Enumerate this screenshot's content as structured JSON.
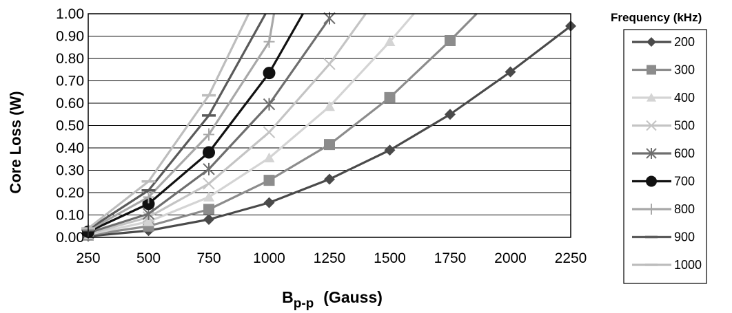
{
  "chart_data": {
    "type": "line",
    "title": "",
    "xlabel_main": "B",
    "xlabel_sub": "p-p",
    "xlabel_units": "(Gauss)",
    "ylabel": "Core Loss (W)",
    "xlim": [
      250,
      2250
    ],
    "ylim": [
      0,
      1.0
    ],
    "x_ticks": [
      "250",
      "500",
      "750",
      "1000",
      "1250",
      "1500",
      "1750",
      "2000",
      "2250"
    ],
    "y_ticks": [
      "0.00",
      "0.10",
      "0.20",
      "0.30",
      "0.40",
      "0.50",
      "0.60",
      "0.70",
      "0.80",
      "0.90",
      "1.00"
    ],
    "grid": "horizontal",
    "legend_title": "Frequency (kHz)",
    "legend_position": "right",
    "series": [
      {
        "name": "200",
        "color": "#4a4a4a",
        "marker": "diamond",
        "x": [
          250,
          500,
          750,
          1000,
          1250,
          1500,
          1750,
          2000,
          2250
        ],
        "values": [
          0.005,
          0.03,
          0.08,
          0.155,
          0.26,
          0.39,
          0.55,
          0.74,
          0.945
        ]
      },
      {
        "name": "300",
        "color": "#8c8c8c",
        "marker": "square",
        "x": [
          250,
          500,
          750,
          1000,
          1250,
          1500,
          1750,
          1860
        ],
        "values": [
          0.01,
          0.05,
          0.125,
          0.255,
          0.415,
          0.625,
          0.88,
          1.0
        ]
      },
      {
        "name": "400",
        "color": "#d4d4d4",
        "marker": "triangle",
        "x": [
          250,
          500,
          750,
          1000,
          1250,
          1500,
          1600
        ],
        "values": [
          0.012,
          0.07,
          0.18,
          0.355,
          0.585,
          0.875,
          1.0
        ]
      },
      {
        "name": "500",
        "color": "#c4c4c4",
        "marker": "x",
        "x": [
          250,
          500,
          750,
          1000,
          1250,
          1400
        ],
        "values": [
          0.015,
          0.09,
          0.24,
          0.47,
          0.775,
          1.0
        ]
      },
      {
        "name": "600",
        "color": "#6e6e6e",
        "marker": "asterisk",
        "x": [
          250,
          500,
          750,
          1000,
          1250
        ],
        "values": [
          0.02,
          0.105,
          0.305,
          0.595,
          0.98
        ]
      },
      {
        "name": "700",
        "color": "#111111",
        "marker": "circle",
        "x": [
          250,
          500,
          750,
          1000,
          1140
        ],
        "values": [
          0.025,
          0.15,
          0.38,
          0.735,
          1.0
        ]
      },
      {
        "name": "800",
        "color": "#a8a8a8",
        "marker": "plus",
        "x": [
          250,
          500,
          750,
          1000,
          1020
        ],
        "values": [
          0.03,
          0.18,
          0.46,
          0.875,
          1.0
        ]
      },
      {
        "name": "900",
        "color": "#5a5a5a",
        "marker": "dash",
        "x": [
          250,
          500,
          750,
          985
        ],
        "values": [
          0.035,
          0.21,
          0.545,
          1.0
        ]
      },
      {
        "name": "1000",
        "color": "#bdbdbd",
        "marker": "dash",
        "x": [
          250,
          500,
          750,
          915
        ],
        "values": [
          0.04,
          0.25,
          0.635,
          1.0
        ]
      }
    ]
  }
}
